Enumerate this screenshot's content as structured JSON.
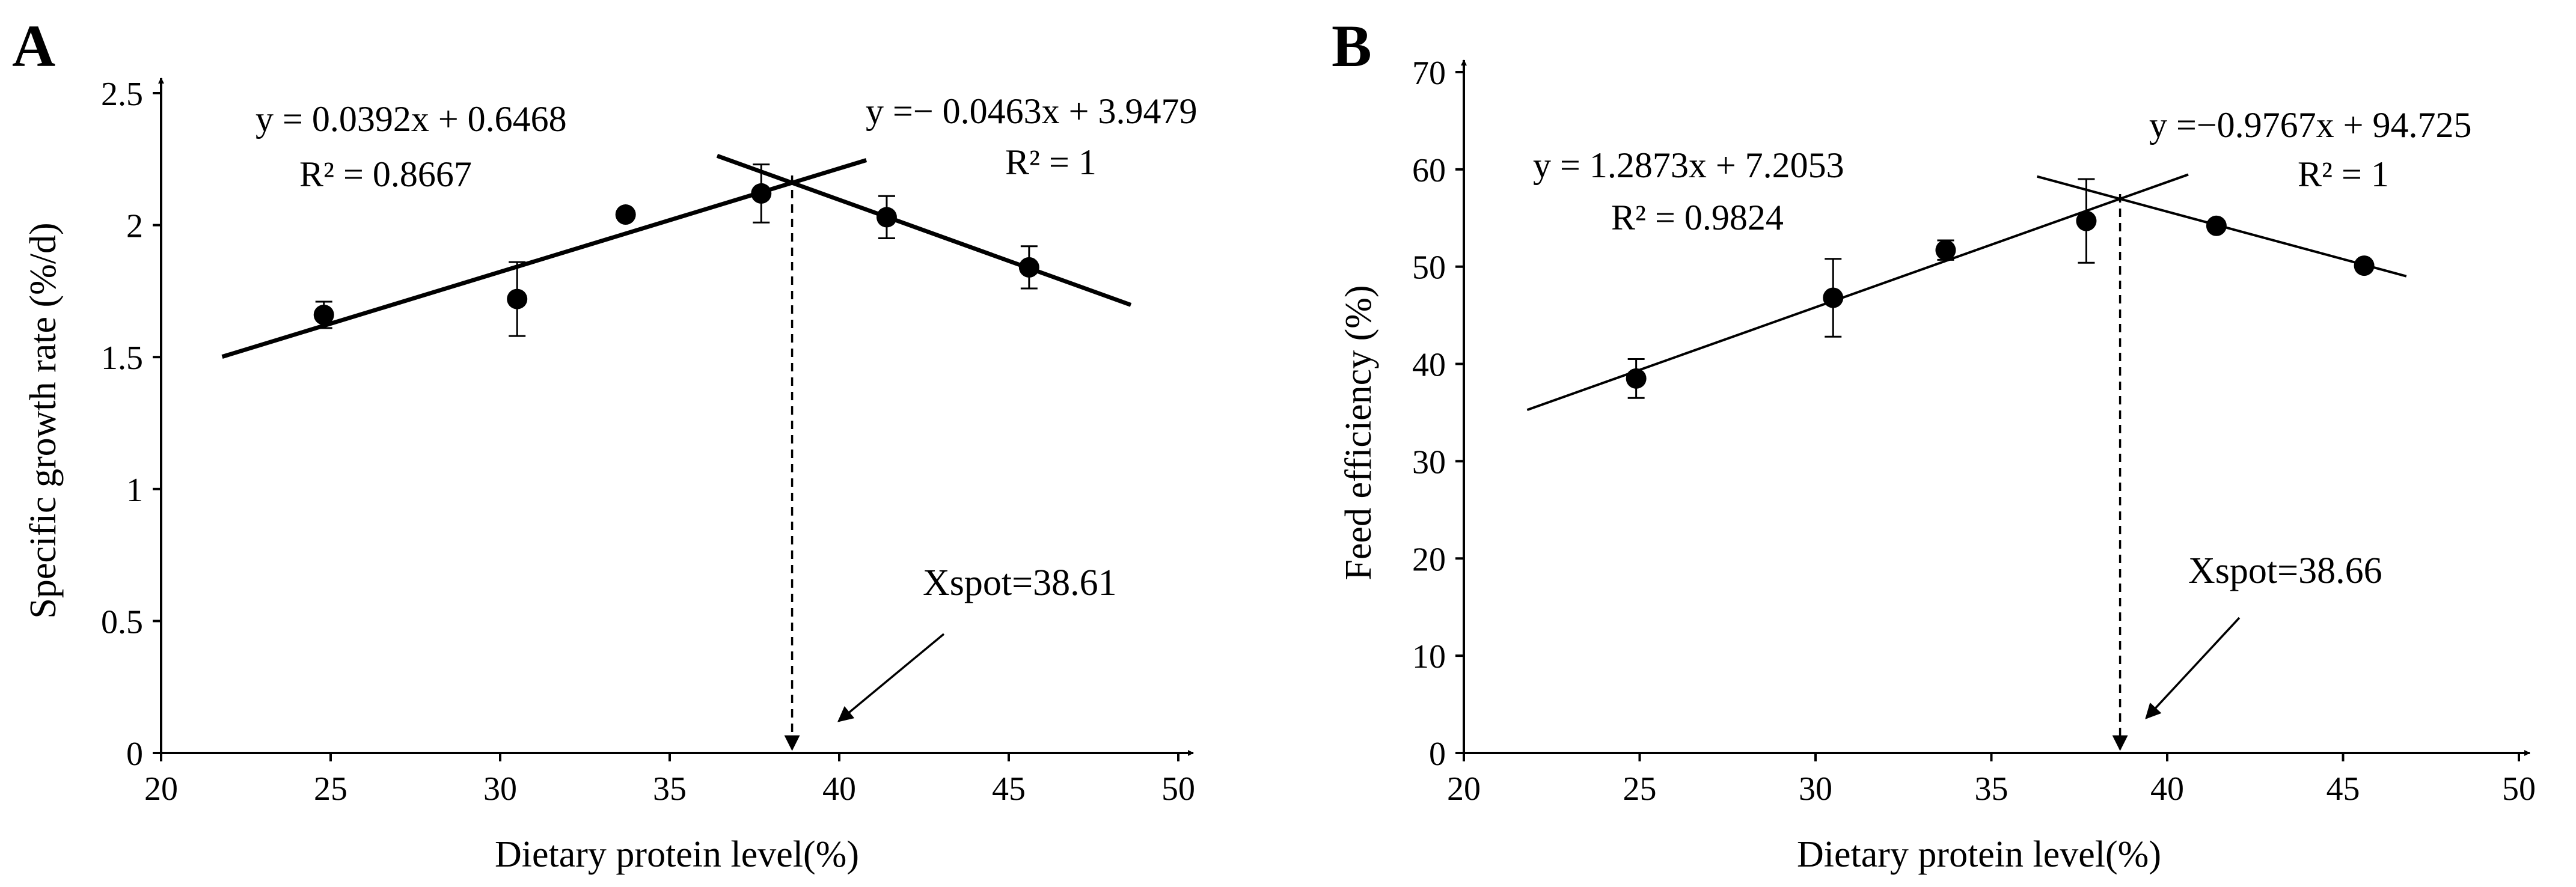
{
  "chart_data": [
    {
      "type": "scatter",
      "panel": "A",
      "xlabel": "Dietary protein level(%)",
      "ylabel": "Specific growth rate (%/d)",
      "xlim": [
        20,
        50
      ],
      "ylim": [
        0,
        2.5
      ],
      "xticks": [
        20,
        25,
        30,
        35,
        40,
        45,
        50
      ],
      "yticks": [
        0,
        0.5,
        1,
        1.5,
        2,
        2.5
      ],
      "xtick_labels": [
        "20",
        "25",
        "30",
        "35",
        "40",
        "45",
        "50"
      ],
      "ytick_labels": [
        "0",
        "0.5",
        "1",
        "1.5",
        "2",
        "2.5"
      ],
      "points": [
        {
          "x": 24.8,
          "y": 1.66,
          "err": 0.05
        },
        {
          "x": 30.5,
          "y": 1.72,
          "err": 0.14
        },
        {
          "x": 33.7,
          "y": 2.04,
          "err": 0
        },
        {
          "x": 37.7,
          "y": 2.12,
          "err": 0.11
        },
        {
          "x": 41.4,
          "y": 2.03,
          "err": 0.08
        },
        {
          "x": 45.6,
          "y": 1.84,
          "err": 0.08
        }
      ],
      "lines": [
        {
          "slope": 0.0392,
          "intercept": 0.6468,
          "x_range": [
            21.8,
            40.8
          ],
          "equation": "y = 0.0392x + 0.6468",
          "r2": "R² = 0.8667"
        },
        {
          "slope": -0.0463,
          "intercept": 3.9479,
          "x_range": [
            36.4,
            48.6
          ],
          "equation": "y =− 0.0463x + 3.9479",
          "r2": "R² = 1"
        }
      ],
      "xspot": 38.61,
      "xspot_label": "Xspot=38.61"
    },
    {
      "type": "scatter",
      "panel": "B",
      "xlabel": "Dietary protein level(%)",
      "ylabel": "Feed efficiency (%)",
      "xlim": [
        20,
        50
      ],
      "ylim": [
        0,
        70
      ],
      "xticks": [
        20,
        25,
        30,
        35,
        40,
        45,
        50
      ],
      "yticks": [
        0,
        10,
        20,
        30,
        40,
        50,
        60,
        70
      ],
      "xtick_labels": [
        "20",
        "25",
        "30",
        "35",
        "40",
        "45",
        "50"
      ],
      "ytick_labels": [
        "0",
        "10",
        "20",
        "30",
        "40",
        "50",
        "60",
        "70"
      ],
      "points": [
        {
          "x": 24.9,
          "y": 38.5,
          "err": 2.0
        },
        {
          "x": 30.5,
          "y": 46.8,
          "err": 4.0
        },
        {
          "x": 33.7,
          "y": 51.7,
          "err": 1.0
        },
        {
          "x": 37.7,
          "y": 54.7,
          "err": 4.3
        },
        {
          "x": 41.4,
          "y": 54.2,
          "err": 0
        },
        {
          "x": 45.6,
          "y": 50.1,
          "err": 0
        }
      ],
      "lines": [
        {
          "slope": 1.2873,
          "intercept": 7.2053,
          "x_range": [
            21.8,
            40.6
          ],
          "equation": "y = 1.2873x + 7.2053",
          "r2": "R² = 0.9824"
        },
        {
          "slope": -0.9767,
          "intercept": 94.725,
          "x_range": [
            36.3,
            46.8
          ],
          "equation": "y =−0.9767x + 94.725",
          "r2": "R² = 1"
        }
      ],
      "xspot": 38.66,
      "xspot_label": "Xspot=38.66"
    }
  ]
}
